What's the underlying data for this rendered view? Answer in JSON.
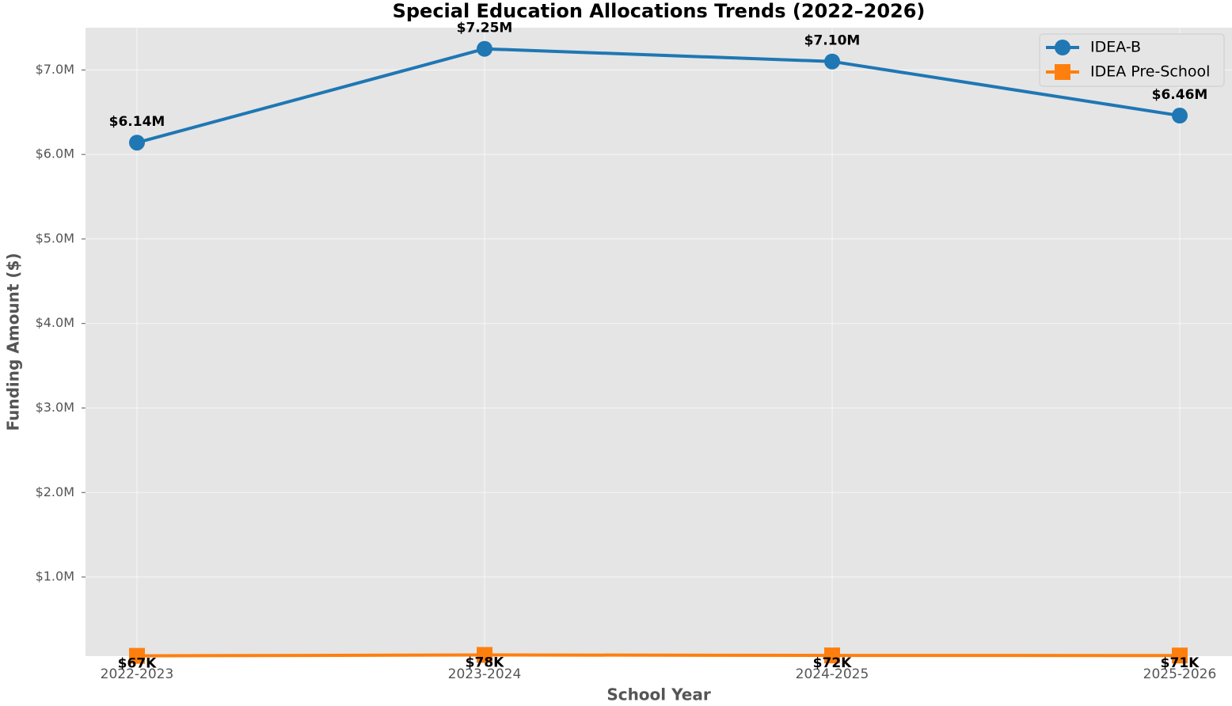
{
  "chart_data": {
    "type": "line",
    "title": "Special Education Allocations Trends (2022–2026)",
    "x_label": "School Year",
    "y_label": "Funding Amount ($)",
    "categories": [
      "2022-2023",
      "2023-2024",
      "2024-2025",
      "2025-2026"
    ],
    "series": [
      {
        "name": "IDEA-B",
        "color": "#1f77b4",
        "marker": "circle",
        "values": [
          6140000,
          7250000,
          7100000,
          6460000
        ],
        "value_labels": [
          "$6.14M",
          "$7.25M",
          "$7.10M",
          "$6.46M"
        ]
      },
      {
        "name": "IDEA Pre-School",
        "color": "#ff7f0e",
        "marker": "square",
        "values": [
          67000,
          78000,
          72000,
          71000
        ],
        "value_labels": [
          "$67K",
          "$78K",
          "$72K",
          "$71K"
        ]
      }
    ],
    "ylim": [
      63650,
      7500000
    ],
    "yticks": [
      {
        "value": 1000000,
        "label": "$1.0M"
      },
      {
        "value": 2000000,
        "label": "$2.0M"
      },
      {
        "value": 3000000,
        "label": "$3.0M"
      },
      {
        "value": 4000000,
        "label": "$4.0M"
      },
      {
        "value": 5000000,
        "label": "$5.0M"
      },
      {
        "value": 6000000,
        "label": "$6.0M"
      },
      {
        "value": 7000000,
        "label": "$7.0M"
      }
    ],
    "grid": true,
    "legend": "upper right"
  }
}
